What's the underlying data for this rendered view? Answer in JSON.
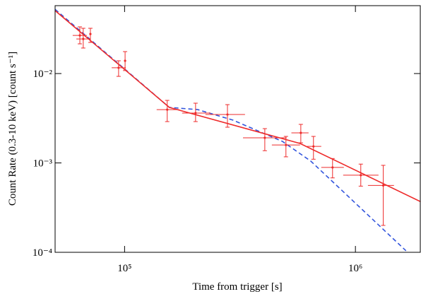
{
  "chart_data": {
    "type": "scatter",
    "x_label": "Time from trigger [s]",
    "y_label": "Count Rate (0.3-10 keV) [count s⁻¹]",
    "xlog": true,
    "ylog": true,
    "xlim": [
      50000,
      1910000
    ],
    "ylim": [
      0.0001,
      0.0575
    ],
    "xticks": [
      {
        "value": 100000,
        "label": "10⁵"
      },
      {
        "value": 1000000,
        "label": "10⁶"
      }
    ],
    "yticks": [
      {
        "value": 0.0001,
        "label": "10⁻⁴"
      },
      {
        "value": 0.001,
        "label": "10⁻³"
      },
      {
        "value": 0.01,
        "label": "10⁻²"
      }
    ],
    "points": {
      "color": "#ee2b2b",
      "x": [
        64000,
        66200,
        71100,
        94200,
        100500,
        153000,
        203000,
        279000,
        405000,
        500000,
        580000,
        658000,
        796000,
        1055000,
        1320000
      ],
      "y": [
        0.0267,
        0.0244,
        0.0277,
        0.0116,
        0.0139,
        0.00395,
        0.00361,
        0.00348,
        0.00191,
        0.00159,
        0.00217,
        0.00153,
        0.00089,
        0.00073,
        0.00056
      ],
      "x_min": [
        59600,
        61800,
        null,
        87900,
        null,
        137700,
        177500,
        224000,
        325800,
        434500,
        528000,
        618000,
        711200,
        885000,
        1133000
      ],
      "x_max": [
        68700,
        71100,
        null,
        101200,
        null,
        172600,
        235500,
        332500,
        503500,
        575400,
        626600,
        711200,
        891000,
        1259000,
        1469000
      ],
      "y_min": [
        0.0215,
        0.0193,
        0.0223,
        0.0093,
        0.0108,
        0.0029,
        0.0029,
        0.00251,
        0.00137,
        0.00117,
        0.00168,
        0.0011,
        0.00068,
        0.00055,
        0.0002
      ],
      "y_max": [
        0.0333,
        0.0321,
        0.0321,
        0.0139,
        0.0176,
        0.00501,
        0.00466,
        0.00449,
        0.00242,
        0.00198,
        0.0027,
        0.00198,
        0.00112,
        0.00097,
        0.00094
      ]
    },
    "lines": [
      {
        "color": "#3355dd",
        "dashed": true,
        "x": [
          50000,
          156300,
          207500,
          295000,
          483000,
          640000,
          1656000
        ],
        "y": [
          0.0523,
          0.00418,
          0.00395,
          0.00301,
          0.00174,
          0.00105,
          0.000104
        ]
      },
      {
        "color": "#ee2b2b",
        "dashed": false,
        "x": [
          50000,
          156300,
          575400,
          1910000
        ],
        "y": [
          0.0506,
          0.00418,
          0.00165,
          0.00037
        ]
      }
    ]
  }
}
